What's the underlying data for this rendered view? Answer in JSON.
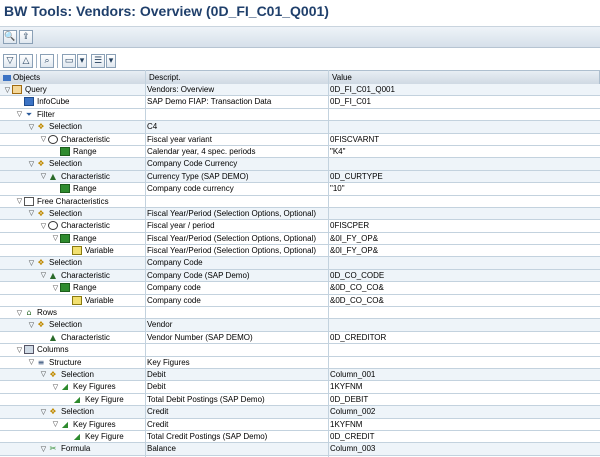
{
  "title": "BW Tools: Vendors: Overview (0D_FI_C01_Q001)",
  "toolbar1": {
    "buttons": [
      {
        "icon": "find-icon",
        "glyph": "🔍"
      },
      {
        "icon": "export-icon",
        "glyph": "⇪"
      }
    ]
  },
  "toolbar2": {
    "buttons": [
      {
        "icon": "expand-all-icon",
        "glyph": "▽"
      },
      {
        "icon": "collapse-all-icon",
        "glyph": "△"
      },
      {
        "icon": "binoculars-icon",
        "glyph": "⌕"
      },
      {
        "icon": "print-icon",
        "glyph": "▭"
      },
      {
        "icon": "print-options-icon",
        "glyph": "▾"
      },
      {
        "icon": "layout-icon",
        "glyph": "☰"
      },
      {
        "icon": "layout-options-icon",
        "glyph": "▾"
      }
    ]
  },
  "columns": {
    "objects": "Objects",
    "descript": "Descript.",
    "value": "Value"
  },
  "rows": [
    {
      "level": 0,
      "toggle": "▽",
      "icon": "query-icon",
      "cls": "i-query",
      "glyph": "",
      "label": "Query",
      "desc": "Vendors: Overview",
      "value": "0D_FI_C01_Q001"
    },
    {
      "level": 1,
      "toggle": "",
      "icon": "infocube-icon",
      "cls": "i-cube",
      "glyph": "",
      "label": "InfoCube",
      "desc": "SAP Demo FIAP: Transaction Data",
      "value": "0D_FI_C01"
    },
    {
      "level": 1,
      "toggle": "▽",
      "icon": "filter-icon",
      "cls": "i-filter",
      "glyph": "⏷",
      "label": "Filter",
      "desc": "",
      "value": ""
    },
    {
      "level": 2,
      "toggle": "▽",
      "icon": "selection-icon",
      "cls": "i-sel",
      "glyph": "❖",
      "label": "Selection",
      "desc": "C4",
      "value": ""
    },
    {
      "level": 3,
      "toggle": "▽",
      "icon": "characteristic-icon",
      "cls": "i-char",
      "glyph": "",
      "label": "Characteristic",
      "desc": "Fiscal year variant",
      "value": "0FISCVARNT"
    },
    {
      "level": 4,
      "toggle": "",
      "icon": "range-icon",
      "cls": "i-range",
      "glyph": "",
      "label": "Range",
      "desc": "Calendar year, 4 spec. periods",
      "value": "\"K4\""
    },
    {
      "level": 2,
      "toggle": "▽",
      "icon": "selection-icon",
      "cls": "i-sel",
      "glyph": "❖",
      "label": "Selection",
      "desc": "Company Code Currency",
      "value": ""
    },
    {
      "level": 3,
      "toggle": "▽",
      "icon": "characteristic-icon",
      "cls": "i-charsel",
      "glyph": "▲",
      "label": "Characteristic",
      "desc": "Currency Type (SAP DEMO)",
      "value": "0D_CURTYPE"
    },
    {
      "level": 4,
      "toggle": "",
      "icon": "range-icon",
      "cls": "i-range",
      "glyph": "",
      "label": "Range",
      "desc": "Company code currency",
      "value": "\"10\""
    },
    {
      "level": 1,
      "toggle": "▽",
      "icon": "free-characteristics-icon",
      "cls": "i-free",
      "glyph": "",
      "label": "Free Characteristics",
      "desc": "",
      "value": ""
    },
    {
      "level": 2,
      "toggle": "▽",
      "icon": "selection-icon",
      "cls": "i-sel",
      "glyph": "❖",
      "label": "Selection",
      "desc": "Fiscal Year/Period (Selection Options, Optional)",
      "value": ""
    },
    {
      "level": 3,
      "toggle": "▽",
      "icon": "characteristic-icon",
      "cls": "i-char",
      "glyph": "",
      "label": "Characteristic",
      "desc": "Fiscal year / period",
      "value": "0FISCPER"
    },
    {
      "level": 4,
      "toggle": "▽",
      "icon": "range-icon",
      "cls": "i-range",
      "glyph": "",
      "label": "Range",
      "desc": "Fiscal Year/Period (Selection Options, Optional)",
      "value": "&0I_FY_OP&"
    },
    {
      "level": 5,
      "toggle": "",
      "icon": "variable-icon",
      "cls": "i-var",
      "glyph": "",
      "label": "Variable",
      "desc": "Fiscal Year/Period (Selection Options, Optional)",
      "value": "&0I_FY_OP&"
    },
    {
      "level": 2,
      "toggle": "▽",
      "icon": "selection-icon",
      "cls": "i-sel",
      "glyph": "❖",
      "label": "Selection",
      "desc": "Company Code",
      "value": ""
    },
    {
      "level": 3,
      "toggle": "▽",
      "icon": "characteristic-icon",
      "cls": "i-charsel",
      "glyph": "▲",
      "label": "Characteristic",
      "desc": "Company Code (SAP Demo)",
      "value": "0D_CO_CODE"
    },
    {
      "level": 4,
      "toggle": "▽",
      "icon": "range-icon",
      "cls": "i-range",
      "glyph": "",
      "label": "Range",
      "desc": "Company code",
      "value": "&0D_CO_CO&"
    },
    {
      "level": 5,
      "toggle": "",
      "icon": "variable-icon",
      "cls": "i-var",
      "glyph": "",
      "label": "Variable",
      "desc": "Company code",
      "value": "&0D_CO_CO&"
    },
    {
      "level": 1,
      "toggle": "▽",
      "icon": "rows-icon",
      "cls": "i-rows",
      "glyph": "⌂",
      "label": "Rows",
      "desc": "",
      "value": ""
    },
    {
      "level": 2,
      "toggle": "▽",
      "icon": "selection-icon",
      "cls": "i-sel",
      "glyph": "❖",
      "label": "Selection",
      "desc": "Vendor",
      "value": ""
    },
    {
      "level": 3,
      "toggle": "",
      "icon": "characteristic-icon",
      "cls": "i-charsel",
      "glyph": "▲",
      "label": "Characteristic",
      "desc": "Vendor Number (SAP DEMO)",
      "value": "0D_CREDITOR"
    },
    {
      "level": 1,
      "toggle": "▽",
      "icon": "columns-icon",
      "cls": "i-cols",
      "glyph": "",
      "label": "Columns",
      "desc": "",
      "value": ""
    },
    {
      "level": 2,
      "toggle": "▽",
      "icon": "structure-icon",
      "cls": "i-struct",
      "glyph": "≡",
      "label": "Structure",
      "desc": "Key Figures",
      "value": ""
    },
    {
      "level": 3,
      "toggle": "▽",
      "icon": "selection-icon",
      "cls": "i-sel",
      "glyph": "❖",
      "label": "Selection",
      "desc": "Debit",
      "value": "Column_001"
    },
    {
      "level": 4,
      "toggle": "▽",
      "icon": "key-figures-icon",
      "cls": "i-kf",
      "glyph": "◢",
      "label": "Key Figures",
      "desc": "Debit",
      "value": "1KYFNM"
    },
    {
      "level": 5,
      "toggle": "",
      "icon": "key-figure-icon",
      "cls": "i-kf",
      "glyph": "◢",
      "label": "Key Figure",
      "desc": "Total Debit Postings (SAP Demo)",
      "value": "0D_DEBIT"
    },
    {
      "level": 3,
      "toggle": "▽",
      "icon": "selection-icon",
      "cls": "i-sel",
      "glyph": "❖",
      "label": "Selection",
      "desc": "Credit",
      "value": "Column_002"
    },
    {
      "level": 4,
      "toggle": "▽",
      "icon": "key-figures-icon",
      "cls": "i-kf",
      "glyph": "◢",
      "label": "Key Figures",
      "desc": "Credit",
      "value": "1KYFNM"
    },
    {
      "level": 5,
      "toggle": "",
      "icon": "key-figure-icon",
      "cls": "i-kf",
      "glyph": "◢",
      "label": "Key Figure",
      "desc": "Total Credit Postings (SAP Demo)",
      "value": "0D_CREDIT"
    },
    {
      "level": 3,
      "toggle": "▽",
      "icon": "formula-icon",
      "cls": "i-formula",
      "glyph": "✂",
      "label": "Formula",
      "desc": "Balance",
      "value": "Column_003"
    }
  ]
}
